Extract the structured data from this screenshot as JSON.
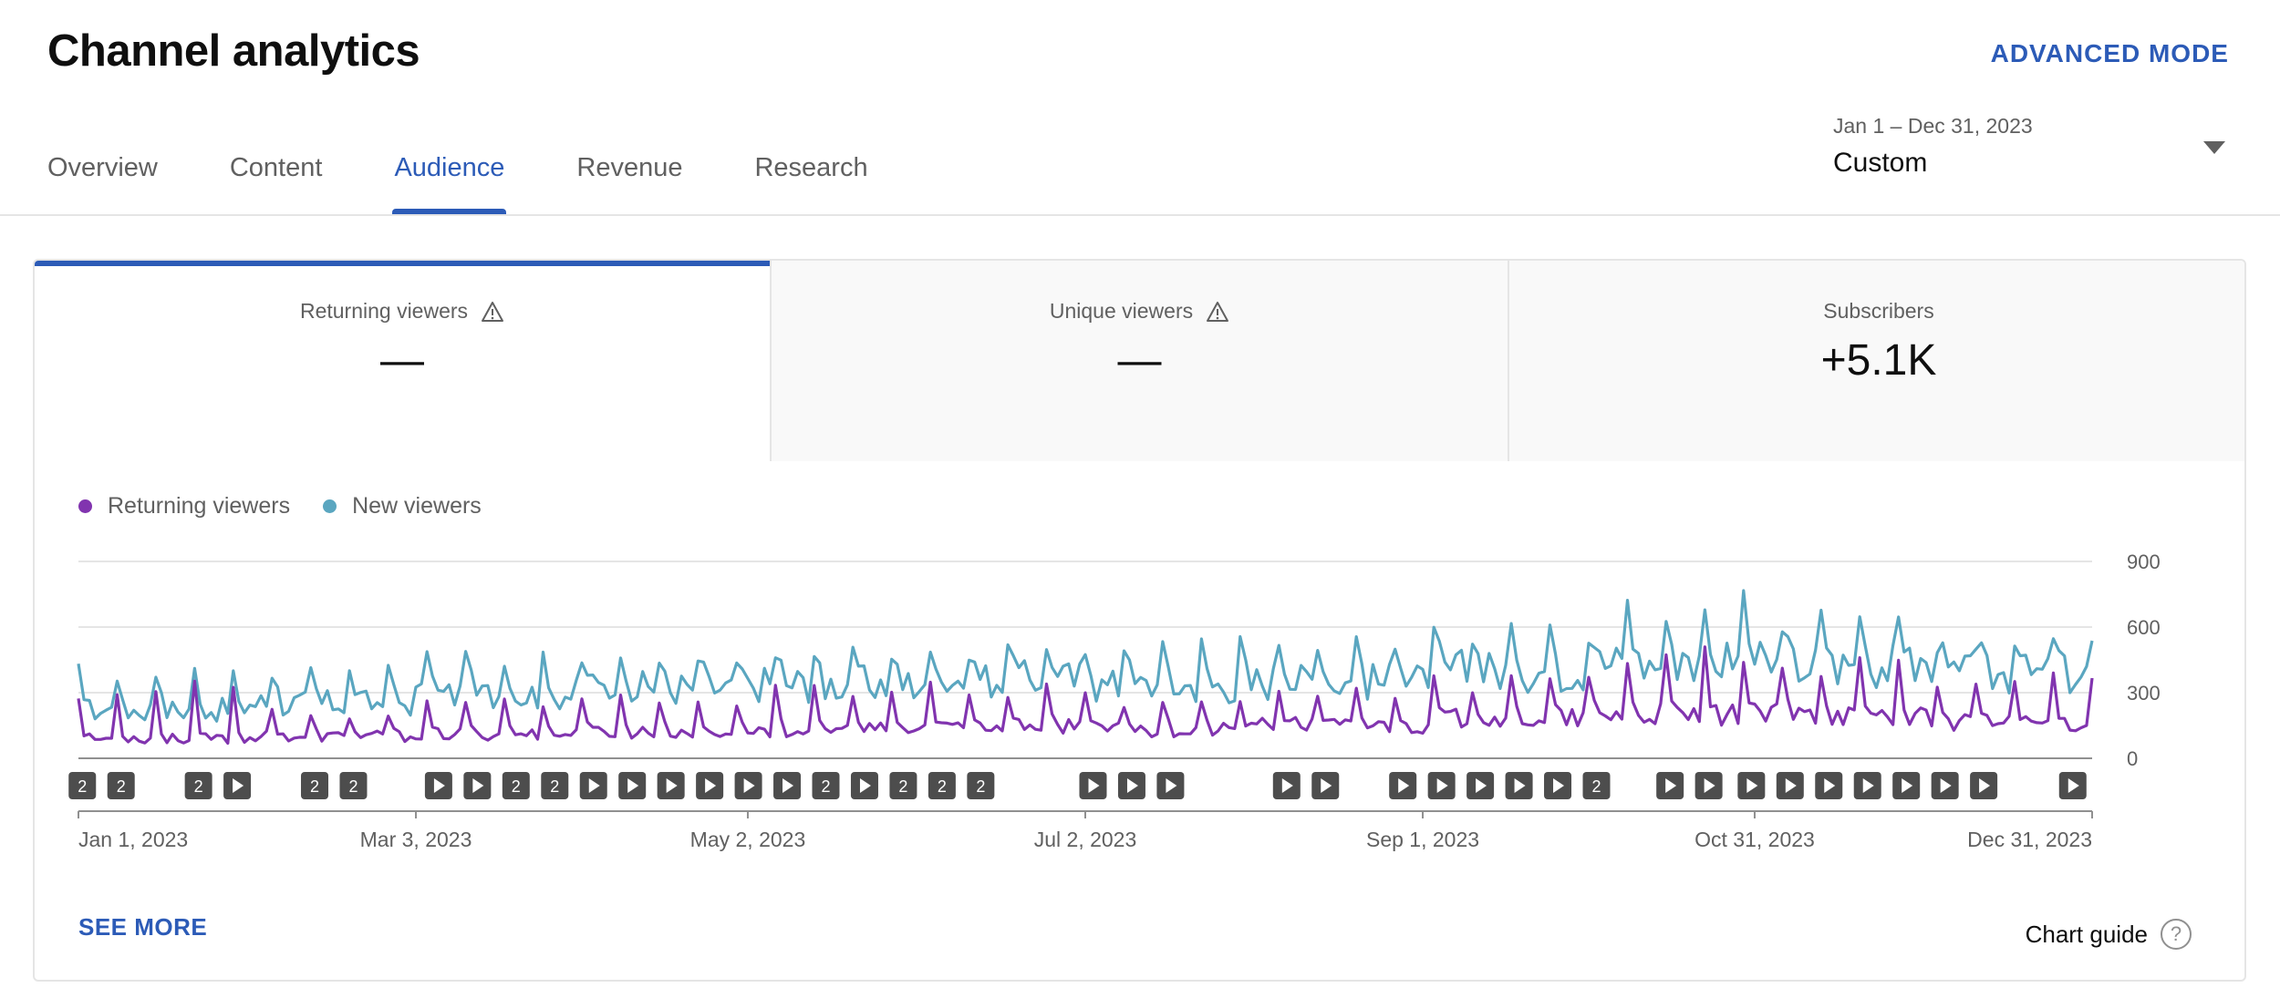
{
  "header": {
    "title": "Channel analytics",
    "advanced_mode": "ADVANCED MODE"
  },
  "tabs": [
    {
      "label": "Overview",
      "active": false
    },
    {
      "label": "Content",
      "active": false
    },
    {
      "label": "Audience",
      "active": true
    },
    {
      "label": "Revenue",
      "active": false
    },
    {
      "label": "Research",
      "active": false
    }
  ],
  "date_picker": {
    "range": "Jan 1 – Dec 31, 2023",
    "mode": "Custom"
  },
  "metrics": [
    {
      "label": "Returning viewers",
      "value": "—",
      "warning_icon": "warning-triangle-icon",
      "active": true
    },
    {
      "label": "Unique viewers",
      "value": "—",
      "warning_icon": "warning-triangle-icon",
      "active": false
    },
    {
      "label": "Subscribers",
      "value": "+5.1K",
      "active": false
    }
  ],
  "colors": {
    "accent": "#2c5bb7",
    "returning": "#8134af",
    "new": "#5aa6c0"
  },
  "markers": [
    {
      "day": 1,
      "type": "2"
    },
    {
      "day": 11,
      "type": "2"
    },
    {
      "day": 31,
      "type": "2"
    },
    {
      "day": 41,
      "type": "play"
    },
    {
      "day": 61,
      "type": "2"
    },
    {
      "day": 71,
      "type": "2"
    },
    {
      "day": 93,
      "type": "play"
    },
    {
      "day": 103,
      "type": "play"
    },
    {
      "day": 113,
      "type": "2"
    },
    {
      "day": 123,
      "type": "2"
    },
    {
      "day": 133,
      "type": "play"
    },
    {
      "day": 143,
      "type": "play"
    },
    {
      "day": 153,
      "type": "play"
    },
    {
      "day": 163,
      "type": "play"
    },
    {
      "day": 173,
      "type": "play"
    },
    {
      "day": 183,
      "type": "play"
    },
    {
      "day": 193,
      "type": "2"
    },
    {
      "day": 203,
      "type": "play"
    },
    {
      "day": 213,
      "type": "2"
    },
    {
      "day": 223,
      "type": "2"
    },
    {
      "day": 233,
      "type": "2"
    },
    {
      "day": 262,
      "type": "play"
    },
    {
      "day": 272,
      "type": "play"
    },
    {
      "day": 282,
      "type": "play"
    },
    {
      "day": 312,
      "type": "play"
    },
    {
      "day": 322,
      "type": "play"
    },
    {
      "day": 342,
      "type": "play"
    },
    {
      "day": 352,
      "type": "play"
    },
    {
      "day": 362,
      "type": "play"
    },
    {
      "day": 372,
      "type": "play"
    },
    {
      "day": 382,
      "type": "play"
    },
    {
      "day": 392,
      "type": "2"
    },
    {
      "day": 411,
      "type": "play"
    },
    {
      "day": 421,
      "type": "play"
    },
    {
      "day": 432,
      "type": "play"
    },
    {
      "day": 442,
      "type": "play"
    },
    {
      "day": 452,
      "type": "play"
    },
    {
      "day": 462,
      "type": "play"
    },
    {
      "day": 472,
      "type": "play"
    },
    {
      "day": 482,
      "type": "play"
    },
    {
      "day": 492,
      "type": "play"
    },
    {
      "day": 515,
      "type": "play"
    }
  ],
  "chart_data": {
    "type": "line",
    "legend": [
      "Returning viewers",
      "New viewers"
    ],
    "x_ticks": [
      "Jan 1, 2023",
      "Mar 3, 2023",
      "May 2, 2023",
      "Jul 2, 2023",
      "Sep 1, 2023",
      "Oct 31, 2023",
      "Dec 31, 2023"
    ],
    "y_ticks": [
      0,
      300,
      600,
      900
    ],
    "ylim": [
      0,
      900
    ],
    "grid": true,
    "x_range": [
      "Jan 1, 2023",
      "Dec 31, 2023"
    ],
    "series": [
      {
        "name": "Returning viewers",
        "color": "#8134af",
        "monthly_approx": [
          {
            "month": "Jan 2023",
            "typical": 90,
            "peak": 420
          },
          {
            "month": "Feb 2023",
            "typical": 100,
            "peak": 230
          },
          {
            "month": "Mar 2023",
            "typical": 110,
            "peak": 330
          },
          {
            "month": "Apr 2023",
            "typical": 120,
            "peak": 310
          },
          {
            "month": "May 2023",
            "typical": 130,
            "peak": 340
          },
          {
            "month": "Jun 2023",
            "typical": 150,
            "peak": 370
          },
          {
            "month": "Jul 2023",
            "typical": 130,
            "peak": 300
          },
          {
            "month": "Aug 2023",
            "typical": 150,
            "peak": 330
          },
          {
            "month": "Sep 2023",
            "typical": 180,
            "peak": 380
          },
          {
            "month": "Oct 2023",
            "typical": 200,
            "peak": 510
          },
          {
            "month": "Nov 2023",
            "typical": 200,
            "peak": 480
          },
          {
            "month": "Dec 2023",
            "typical": 160,
            "peak": 430
          }
        ]
      },
      {
        "name": "New viewers",
        "color": "#5aa6c0",
        "monthly_approx": [
          {
            "month": "Jan 2023",
            "typical": 220,
            "peak": 440
          },
          {
            "month": "Feb 2023",
            "typical": 250,
            "peak": 430
          },
          {
            "month": "Mar 2023",
            "typical": 290,
            "peak": 490
          },
          {
            "month": "Apr 2023",
            "typical": 320,
            "peak": 470
          },
          {
            "month": "May 2023",
            "typical": 340,
            "peak": 510
          },
          {
            "month": "Jun 2023",
            "typical": 360,
            "peak": 520
          },
          {
            "month": "Jul 2023",
            "typical": 330,
            "peak": 570
          },
          {
            "month": "Aug 2023",
            "typical": 350,
            "peak": 610
          },
          {
            "month": "Sep 2023",
            "typical": 400,
            "peak": 620
          },
          {
            "month": "Oct 2023",
            "typical": 430,
            "peak": 770
          },
          {
            "month": "Nov 2023",
            "typical": 420,
            "peak": 700
          },
          {
            "month": "Dec 2023",
            "typical": 380,
            "peak": 560
          }
        ]
      }
    ]
  },
  "footer": {
    "see_more": "SEE MORE",
    "chart_guide": "Chart guide",
    "help_icon_char": "?"
  }
}
